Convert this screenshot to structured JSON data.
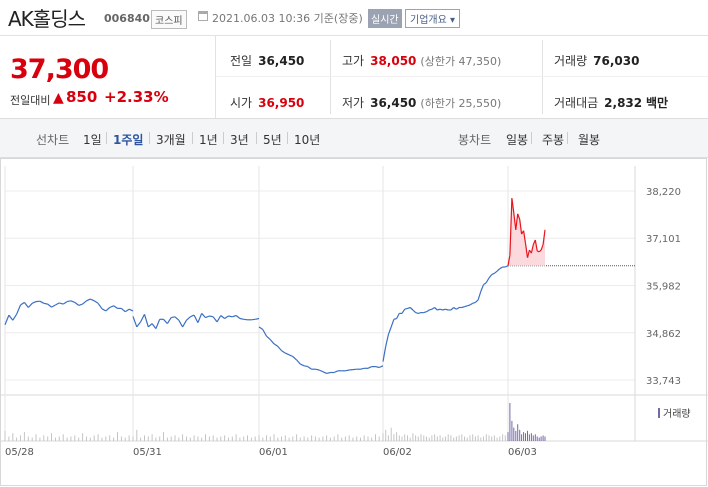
{
  "header": {
    "name": "AK홀딩스",
    "code": "006840",
    "market": "코스피",
    "datetime": "2021.06.03 10:36 기준(장중)",
    "realtime": "실시간",
    "overview": "기업개요 ▾"
  },
  "quote": {
    "price": "37,300",
    "change_label": "전일대비",
    "change": "850",
    "change_pct": "+2.33%",
    "up_color": "#d8000c"
  },
  "stats": {
    "prev_label": "전일",
    "prev": "36,450",
    "high_label": "고가",
    "high": "38,050",
    "upper_limit": "(상한가 47,350)",
    "volume_label": "거래량",
    "volume": "76,030",
    "open_label": "시가",
    "open": "36,950",
    "low_label": "저가",
    "low": "36,450",
    "lower_limit": "(하한가 25,550)",
    "amount_label": "거래대금",
    "amount": "2,832",
    "amount_unit": "백만"
  },
  "tabs": {
    "line_label": "선차트",
    "line": [
      "1일",
      "1주일",
      "3개월",
      "1년",
      "3년",
      "5년",
      "10년"
    ],
    "candle_label": "봉차트",
    "candle": [
      "일봉",
      "주봉",
      "월봉"
    ],
    "active": "1주일"
  },
  "chart_data": {
    "type": "line",
    "y_ticks": [
      38220,
      37101,
      35982,
      34862,
      33743
    ],
    "ylim": [
      33743,
      38220
    ],
    "x_ticks": [
      "05/28",
      "05/31",
      "06/01",
      "06/02",
      "06/03"
    ],
    "prev_close": 36450,
    "volume_legend": "거래량",
    "colors": {
      "down": "#3a6fc4",
      "up": "#e8131c",
      "fill": "#fbd9dc",
      "volume": "#c4c4c4",
      "volume_today": "#7868a8"
    },
    "days": [
      {
        "label": "05/28",
        "values": [
          35050,
          35280,
          35160,
          35300,
          35520,
          35580,
          35460,
          35560,
          35600,
          35610,
          35560,
          35540,
          35470,
          35520,
          35570,
          35540,
          35600,
          35620,
          35580,
          35510,
          35540,
          35620,
          35660,
          35620,
          35560,
          35430,
          35380,
          35460,
          35500,
          35440,
          35440,
          35360,
          35420,
          35380
        ]
      },
      {
        "label": "05/31",
        "values": [
          35250,
          35000,
          35120,
          35300,
          35000,
          35080,
          34960,
          35180,
          35180,
          35080,
          35220,
          35240,
          35160,
          35000,
          35160,
          35240,
          35280,
          35100,
          35320,
          35220,
          35260,
          35240,
          35120,
          35270,
          35200,
          35260,
          35240,
          35270,
          35200,
          35180,
          35170,
          35170,
          35180,
          35200
        ]
      },
      {
        "label": "06/01",
        "values": [
          35000,
          34940,
          34780,
          34700,
          34600,
          34540,
          34440,
          34380,
          34340,
          34300,
          34220,
          34120,
          34080,
          34060,
          34000,
          34000,
          33980,
          33940,
          33900,
          33920,
          33920,
          33960,
          33960,
          33960,
          33980,
          33990,
          34000,
          34000,
          34020,
          34020,
          34060,
          34060,
          34040,
          34080
        ]
      },
      {
        "label": "06/02",
        "values": [
          34180,
          34540,
          34820,
          35000,
          35180,
          35200,
          35320,
          35320,
          35420,
          35440,
          35460,
          35400,
          35340,
          35320,
          35340,
          35340,
          35360,
          35400,
          35420,
          35460,
          35400,
          35420,
          35400,
          35420,
          35400,
          35400,
          35460,
          35420,
          35460,
          35460,
          35480,
          35500,
          35520,
          35560,
          35580,
          35640,
          35840,
          36000,
          36050,
          36160,
          36240,
          36270,
          36320,
          36380,
          36420,
          36420,
          36450
        ]
      },
      {
        "label": "06/03",
        "values": [
          36450,
          36700,
          38050,
          37700,
          37300,
          37680,
          37550,
          37200,
          37280,
          36980,
          36640,
          36820,
          36750,
          36950,
          37060,
          36800,
          36780,
          36820,
          36950,
          37300
        ]
      }
    ],
    "volume": [
      {
        "label": "05/28",
        "values": [
          9,
          4,
          7,
          3,
          5,
          8,
          4,
          3,
          6,
          3,
          5,
          4,
          7,
          3,
          4,
          6,
          3,
          4,
          5,
          3,
          7,
          4,
          3,
          5,
          6,
          3,
          4,
          5,
          3,
          8,
          4,
          3,
          5,
          4
        ]
      },
      {
        "label": "05/31",
        "values": [
          4,
          10,
          3,
          5,
          4,
          6,
          3,
          4,
          8,
          3,
          4,
          5,
          3,
          6,
          4,
          3,
          5,
          4,
          3,
          6,
          4,
          5,
          3,
          4,
          5,
          3,
          4,
          6,
          3,
          4,
          5,
          3,
          4,
          5
        ]
      },
      {
        "label": "06/01",
        "values": [
          4,
          3,
          5,
          4,
          6,
          3,
          4,
          5,
          3,
          4,
          6,
          3,
          4,
          3,
          5,
          4,
          3,
          4,
          5,
          3,
          4,
          6,
          3,
          4,
          5,
          3,
          4,
          3,
          5,
          4,
          3,
          6,
          4,
          5
        ]
      },
      {
        "label": "06/02",
        "values": [
          7,
          10,
          5,
          12,
          6,
          8,
          5,
          4,
          6,
          5,
          3,
          7,
          5,
          4,
          6,
          5,
          4,
          3,
          5,
          6,
          4,
          5,
          3,
          4,
          6,
          5,
          3,
          4,
          5,
          6,
          4,
          3,
          5,
          6,
          4,
          5,
          3,
          4,
          6,
          5,
          4,
          5,
          3,
          4,
          6,
          5,
          4
        ]
      },
      {
        "label": "06/03",
        "values": [
          8,
          34,
          18,
          12,
          9,
          15,
          10,
          6,
          8,
          7,
          9,
          6,
          7,
          5,
          6,
          4,
          3,
          4,
          5,
          4
        ]
      }
    ]
  }
}
